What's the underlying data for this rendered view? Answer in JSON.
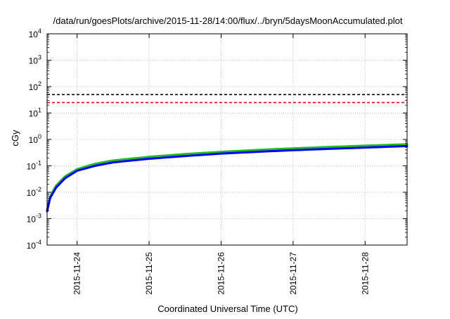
{
  "chart_data": {
    "type": "line",
    "title": "/data/run/goesPlots/archive/2015-11-28/14:00/flux/../bryn/5daysMoonAccumulated.plot",
    "xlabel": "Coordinated Universal Time (UTC)",
    "ylabel": "cGy",
    "y_scale": "log",
    "ylim": [
      0.0001,
      10000
    ],
    "xlim": [
      "2015-11-23T14:00",
      "2015-11-28T14:00"
    ],
    "grid": true,
    "x_ticks": [
      "2015-11-24",
      "2015-11-25",
      "2015-11-26",
      "2015-11-27",
      "2015-11-28"
    ],
    "y_ticks": [
      {
        "value": 0.0001,
        "mantissa": "10",
        "exp": "-4"
      },
      {
        "value": 0.001,
        "mantissa": "10",
        "exp": "-3"
      },
      {
        "value": 0.01,
        "mantissa": "10",
        "exp": "-2"
      },
      {
        "value": 0.1,
        "mantissa": "10",
        "exp": "-1"
      },
      {
        "value": 1,
        "mantissa": "10",
        "exp": "0"
      },
      {
        "value": 10,
        "mantissa": "10",
        "exp": "1"
      },
      {
        "value": 100,
        "mantissa": "10",
        "exp": "2"
      },
      {
        "value": 1000,
        "mantissa": "10",
        "exp": "3"
      },
      {
        "value": 10000,
        "mantissa": "10",
        "exp": "4"
      }
    ],
    "threshold_lines": [
      {
        "value": 50,
        "color": "#000000",
        "style": "dashed"
      },
      {
        "value": 25,
        "color": "#ff0000",
        "style": "dashed"
      }
    ],
    "series": [
      {
        "color": "#22bb22",
        "x": [
          "2015-11-23T14:00",
          "2015-11-23T15:00",
          "2015-11-23T17:00",
          "2015-11-23T20:00",
          "2015-11-24T00:00",
          "2015-11-24T06:00",
          "2015-11-24T12:00",
          "2015-11-25T00:00",
          "2015-11-25T12:00",
          "2015-11-26T00:00",
          "2015-11-26T12:00",
          "2015-11-27T00:00",
          "2015-11-27T12:00",
          "2015-11-28T00:00",
          "2015-11-28T14:00"
        ],
        "y": [
          0.0022,
          0.007,
          0.018,
          0.04,
          0.075,
          0.12,
          0.16,
          0.22,
          0.28,
          0.34,
          0.4,
          0.46,
          0.52,
          0.58,
          0.66
        ]
      },
      {
        "color": "#0000ff",
        "x": [
          "2015-11-23T14:00",
          "2015-11-23T15:00",
          "2015-11-23T17:00",
          "2015-11-23T20:00",
          "2015-11-24T00:00",
          "2015-11-24T06:00",
          "2015-11-24T12:00",
          "2015-11-25T00:00",
          "2015-11-25T12:00",
          "2015-11-26T00:00",
          "2015-11-26T12:00",
          "2015-11-27T00:00",
          "2015-11-27T12:00",
          "2015-11-28T00:00",
          "2015-11-28T14:00"
        ],
        "y": [
          0.0019,
          0.006,
          0.015,
          0.034,
          0.065,
          0.1,
          0.135,
          0.185,
          0.235,
          0.29,
          0.34,
          0.39,
          0.44,
          0.49,
          0.56
        ]
      }
    ]
  }
}
